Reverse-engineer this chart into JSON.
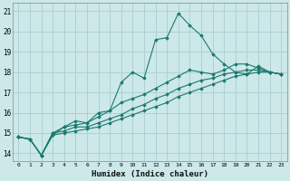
{
  "xlabel": "Humidex (Indice chaleur)",
  "bg_color": "#cce8e8",
  "line_color": "#1a7a6e",
  "grid_color": "#aacece",
  "x_ticks": [
    0,
    1,
    2,
    3,
    4,
    5,
    6,
    7,
    8,
    9,
    10,
    11,
    12,
    13,
    14,
    15,
    16,
    17,
    18,
    19,
    20,
    21,
    22,
    23
  ],
  "y_ticks": [
    14,
    15,
    16,
    17,
    18,
    19,
    20,
    21
  ],
  "ylim": [
    13.6,
    21.4
  ],
  "xlim": [
    -0.5,
    23.5
  ],
  "line1": [
    14.8,
    14.7,
    13.9,
    14.9,
    15.3,
    15.6,
    15.5,
    16.0,
    16.1,
    17.5,
    18.0,
    17.7,
    19.6,
    19.7,
    20.9,
    20.3,
    19.8,
    18.9,
    18.4,
    18.0,
    17.9,
    18.3,
    18.0,
    17.9
  ],
  "line2": [
    14.8,
    14.7,
    13.9,
    15.0,
    15.3,
    15.4,
    15.5,
    15.8,
    16.1,
    16.5,
    16.7,
    16.9,
    17.2,
    17.5,
    17.8,
    18.1,
    18.0,
    17.9,
    18.1,
    18.4,
    18.4,
    18.2,
    18.0,
    17.9
  ],
  "line3": [
    14.8,
    14.7,
    13.9,
    15.0,
    15.1,
    15.3,
    15.3,
    15.5,
    15.7,
    15.9,
    16.2,
    16.4,
    16.7,
    16.9,
    17.2,
    17.4,
    17.6,
    17.7,
    17.9,
    18.0,
    18.1,
    18.1,
    18.0,
    17.9
  ],
  "line4": [
    14.8,
    14.7,
    13.9,
    14.9,
    15.0,
    15.1,
    15.2,
    15.3,
    15.5,
    15.7,
    15.9,
    16.1,
    16.3,
    16.5,
    16.8,
    17.0,
    17.2,
    17.4,
    17.6,
    17.8,
    17.9,
    18.0,
    18.0,
    17.9
  ]
}
